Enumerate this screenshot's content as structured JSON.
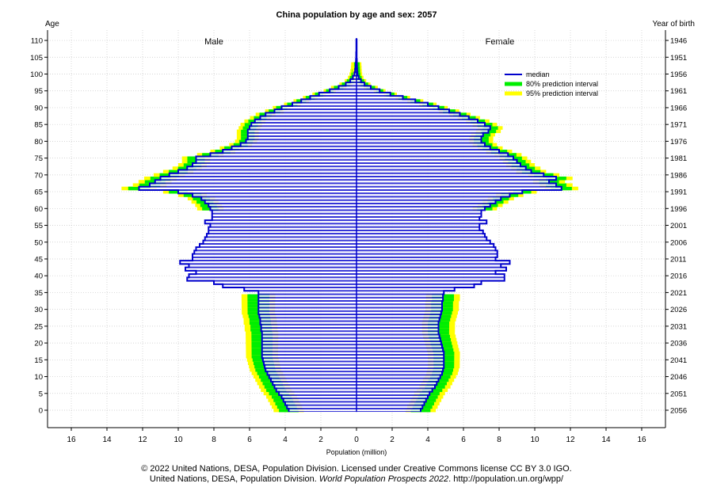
{
  "chart_data": {
    "type": "population-pyramid",
    "title": "China population by age and sex: 2057",
    "xlabel": "Population (million)",
    "ylabel_left": "Age",
    "ylabel_right": "Year of birth",
    "left_group": "Male",
    "right_group": "Female",
    "xlim": [
      -17,
      17
    ],
    "ylim": [
      -2,
      112
    ],
    "x_ticks": [
      -16,
      -14,
      -12,
      -10,
      -8,
      -6,
      -4,
      -2,
      0,
      2,
      4,
      6,
      8,
      10,
      12,
      14,
      16
    ],
    "x_tick_labels": [
      "16",
      "14",
      "12",
      "10",
      "8",
      "6",
      "4",
      "2",
      "0",
      "2",
      "4",
      "6",
      "8",
      "10",
      "12",
      "14",
      "16"
    ],
    "age_ticks": [
      0,
      5,
      10,
      15,
      20,
      25,
      30,
      35,
      40,
      45,
      50,
      55,
      60,
      65,
      70,
      75,
      80,
      85,
      90,
      95,
      100,
      105,
      110
    ],
    "age_tick_labels": [
      "0",
      "5",
      "10",
      "15",
      "20",
      "25",
      "30",
      "35",
      "40",
      "45",
      "50",
      "55",
      "60",
      "65",
      "70",
      "75",
      "80",
      "85",
      "90",
      "95",
      "100",
      "105",
      "110"
    ],
    "birth_year_ticks": [
      0,
      5,
      10,
      15,
      20,
      25,
      30,
      35,
      40,
      45,
      50,
      55,
      60,
      65,
      70,
      75,
      80,
      85,
      90,
      95,
      100,
      105,
      110
    ],
    "birth_year_labels": [
      "2056",
      "2051",
      "2046",
      "2041",
      "2036",
      "2031",
      "2026",
      "2021",
      "2016",
      "2011",
      "2006",
      "2001",
      "1996",
      "1991",
      "1986",
      "1981",
      "1976",
      "1971",
      "1966",
      "1961",
      "1956",
      "1951",
      "1946"
    ],
    "grid": true,
    "legend_position": "top-right",
    "legend": [
      {
        "label": "median",
        "color": "#0000cc"
      },
      {
        "label": "80% prediction interval",
        "color": "#00ee00"
      },
      {
        "label": "95% prediction interval",
        "color": "#ffff00"
      }
    ],
    "colors": {
      "median": "#0000cc",
      "pi80": "#00ee00",
      "pi95": "#ffff00",
      "grid": "#c8c8c8"
    },
    "ages": [
      0,
      1,
      2,
      3,
      4,
      5,
      6,
      7,
      8,
      9,
      10,
      11,
      12,
      13,
      14,
      15,
      16,
      17,
      18,
      19,
      20,
      21,
      22,
      23,
      24,
      25,
      26,
      27,
      28,
      29,
      30,
      31,
      32,
      33,
      34,
      35,
      36,
      37,
      38,
      39,
      40,
      41,
      42,
      43,
      44,
      45,
      46,
      47,
      48,
      49,
      50,
      51,
      52,
      53,
      54,
      55,
      56,
      57,
      58,
      59,
      60,
      61,
      62,
      63,
      64,
      65,
      66,
      67,
      68,
      69,
      70,
      71,
      72,
      73,
      74,
      75,
      76,
      77,
      78,
      79,
      80,
      81,
      82,
      83,
      84,
      85,
      86,
      87,
      88,
      89,
      90,
      91,
      92,
      93,
      94,
      95,
      96,
      97,
      98,
      99,
      100,
      101,
      102,
      103,
      104,
      105,
      106,
      107,
      108,
      109,
      110
    ],
    "male_median": [
      3.8,
      3.9,
      4.0,
      4.1,
      4.2,
      4.35,
      4.5,
      4.6,
      4.7,
      4.8,
      4.9,
      5.0,
      5.1,
      5.15,
      5.2,
      5.25,
      5.3,
      5.3,
      5.3,
      5.3,
      5.3,
      5.3,
      5.3,
      5.3,
      5.35,
      5.35,
      5.4,
      5.4,
      5.45,
      5.5,
      5.5,
      5.5,
      5.5,
      5.5,
      5.5,
      5.5,
      6.3,
      7.5,
      8.0,
      9.5,
      9.4,
      9.0,
      9.6,
      9.4,
      9.9,
      9.2,
      9.2,
      9.1,
      9.0,
      8.8,
      8.6,
      8.5,
      8.4,
      8.3,
      8.3,
      8.2,
      8.5,
      8.1,
      8.1,
      8.1,
      8.2,
      8.3,
      8.5,
      8.7,
      9.2,
      10.0,
      12.2,
      11.6,
      11.3,
      11.0,
      10.5,
      10.0,
      9.5,
      9.2,
      9.0,
      9.0,
      8.2,
      7.5,
      7.0,
      6.5,
      6.2,
      6.1,
      6.1,
      6.1,
      6.0,
      5.9,
      5.7,
      5.4,
      5.1,
      4.6,
      4.2,
      3.6,
      3.1,
      2.6,
      2.1,
      1.5,
      1.0,
      0.6,
      0.35,
      0.2,
      0.12,
      0.08,
      0.05,
      0.04,
      0.03,
      0.02,
      0.02,
      0.01,
      0.01,
      0.01,
      0.01
    ],
    "female_median": [
      3.6,
      3.7,
      3.8,
      3.9,
      4.0,
      4.1,
      4.25,
      4.4,
      4.5,
      4.6,
      4.7,
      4.8,
      4.85,
      4.9,
      4.9,
      4.9,
      4.9,
      4.9,
      4.85,
      4.8,
      4.75,
      4.7,
      4.65,
      4.6,
      4.6,
      4.6,
      4.6,
      4.65,
      4.7,
      4.75,
      4.8,
      4.8,
      4.8,
      4.85,
      4.85,
      4.9,
      5.5,
      6.6,
      7.0,
      8.3,
      8.3,
      7.8,
      8.4,
      8.1,
      8.6,
      7.8,
      7.9,
      7.9,
      7.8,
      7.7,
      7.5,
      7.3,
      7.2,
      7.1,
      6.9,
      6.9,
      7.3,
      6.9,
      7.0,
      7.0,
      7.2,
      7.5,
      7.8,
      8.1,
      8.6,
      9.3,
      11.5,
      11.2,
      10.8,
      11.2,
      10.5,
      9.8,
      9.5,
      9.2,
      9.0,
      8.8,
      8.5,
      8.0,
      7.5,
      7.2,
      7.0,
      7.0,
      7.1,
      7.4,
      7.5,
      7.2,
      6.8,
      6.3,
      5.8,
      5.2,
      4.6,
      4.0,
      3.3,
      2.6,
      1.9,
      1.3,
      0.8,
      0.45,
      0.25,
      0.12,
      0.06,
      0.04,
      0.03,
      0.02,
      0.02,
      0.01,
      0.01,
      0.01,
      0.01,
      0.01,
      0.01
    ]
  },
  "credit": {
    "line1": "© 2022 United Nations, DESA, Population Division. Licensed under Creative Commons license CC BY 3.0 IGO.",
    "line2_prefix": "United Nations, DESA, Population Division. ",
    "line2_italic": "World Population Prospects 2022",
    "line2_suffix": ". http://population.un.org/wpp/"
  }
}
